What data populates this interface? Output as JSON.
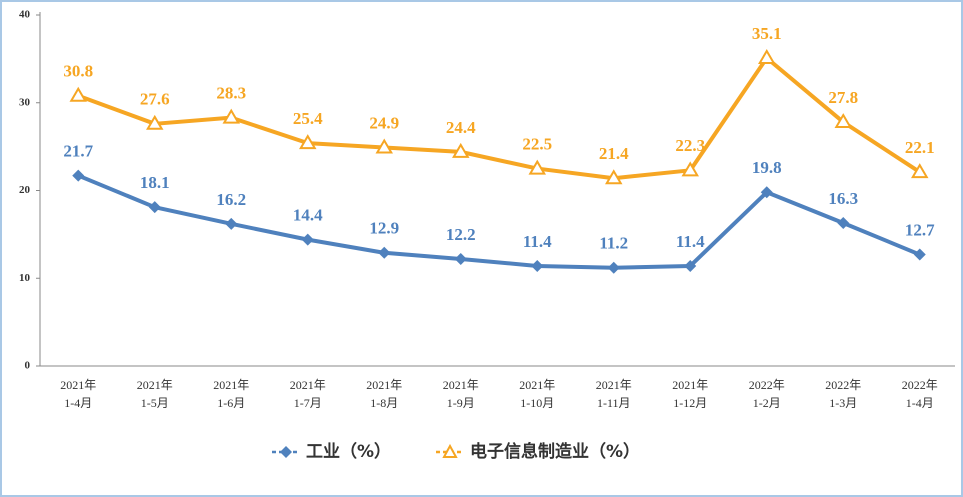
{
  "chart_data": {
    "type": "line",
    "categories": [
      [
        "2021年",
        "1-4月"
      ],
      [
        "2021年",
        "1-5月"
      ],
      [
        "2021年",
        "1-6月"
      ],
      [
        "2021年",
        "1-7月"
      ],
      [
        "2021年",
        "1-8月"
      ],
      [
        "2021年",
        "1-9月"
      ],
      [
        "2021年",
        "1-10月"
      ],
      [
        "2021年",
        "1-11月"
      ],
      [
        "2021年",
        "1-12月"
      ],
      [
        "2022年",
        "1-2月"
      ],
      [
        "2022年",
        "1-3月"
      ],
      [
        "2022年",
        "1-4月"
      ]
    ],
    "series": [
      {
        "name": "工业（%）",
        "color": "#4f81bd",
        "marker": "diamond",
        "values": [
          21.7,
          18.1,
          16.2,
          14.4,
          12.9,
          12.2,
          11.4,
          11.2,
          11.4,
          19.8,
          16.3,
          12.7
        ]
      },
      {
        "name": "电子信息制造业（%）",
        "color": "#f6a623",
        "marker": "triangle",
        "values": [
          30.8,
          27.6,
          28.3,
          25.4,
          24.9,
          24.4,
          22.5,
          21.4,
          22.3,
          35.1,
          27.8,
          22.1
        ]
      }
    ],
    "ylim": [
      0,
      40
    ],
    "yticks": [
      0,
      10,
      20,
      30,
      40
    ],
    "grid": false,
    "legend": "bottom"
  }
}
